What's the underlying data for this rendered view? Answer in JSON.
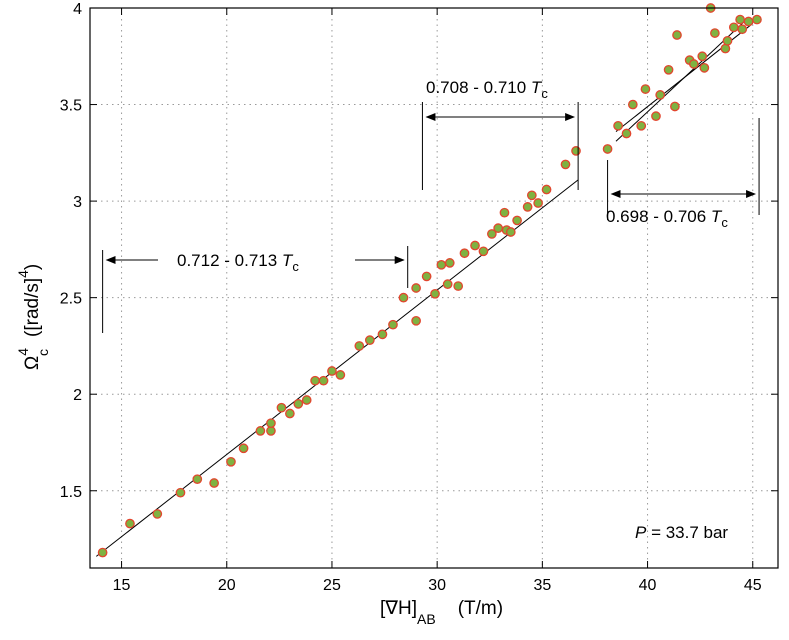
{
  "chart_data": {
    "type": "scatter",
    "xlabel": {
      "main": "[∇H]",
      "sub": "AB",
      "unit": "(T/m)"
    },
    "ylabel": {
      "main": "Ω",
      "sup": "4",
      "sub": "c",
      "unit": "([rad/s]",
      "unit_sup": "4",
      "unit_close": ")"
    },
    "xlim": [
      13.5,
      46.2
    ],
    "ylim": [
      1.1,
      4.0
    ],
    "xticks": [
      "15",
      "20",
      "25",
      "30",
      "35",
      "40",
      "45"
    ],
    "yticks": [
      "1.5",
      "2",
      "2.5",
      "3",
      "3.5",
      "4"
    ],
    "xtick_values": [
      15,
      20,
      25,
      30,
      35,
      40,
      45
    ],
    "ytick_values": [
      1.5,
      2,
      2.5,
      3,
      3.5,
      4
    ],
    "grid": true,
    "colors": {
      "marker_fill": "#7fb241",
      "marker_edge": "#e2462e",
      "line": "#000000",
      "grid": "#9a9a9a"
    },
    "note": {
      "var": "P",
      "text": " = 33.7 bar"
    },
    "groups": [
      {
        "label": "0.712 - 0.713 ",
        "tc": "T",
        "tc_sub": "c",
        "range": [
          14.1,
          28.6
        ]
      },
      {
        "label": "0.708 - 0.710 ",
        "tc": "T",
        "tc_sub": "c",
        "range": [
          29.3,
          36.7
        ]
      },
      {
        "label": "0.698 - 0.706 ",
        "tc": "T",
        "tc_sub": "c",
        "range": [
          38.1,
          45.3
        ]
      }
    ],
    "fit_lines": [
      {
        "from": [
          13.8,
          1.16
        ],
        "to": [
          36.7,
          3.11
        ]
      },
      {
        "from": [
          38.5,
          3.31
        ],
        "to": [
          44.8,
          3.95
        ]
      },
      {
        "from": [
          38.5,
          3.36
        ],
        "to": [
          45.0,
          3.92
        ]
      }
    ],
    "series": [
      {
        "name": "measurements",
        "points": [
          [
            14.1,
            1.18
          ],
          [
            15.4,
            1.33
          ],
          [
            16.7,
            1.38
          ],
          [
            17.8,
            1.49
          ],
          [
            18.6,
            1.56
          ],
          [
            19.4,
            1.54
          ],
          [
            20.2,
            1.65
          ],
          [
            20.8,
            1.72
          ],
          [
            21.6,
            1.81
          ],
          [
            22.1,
            1.81
          ],
          [
            22.1,
            1.85
          ],
          [
            22.6,
            1.93
          ],
          [
            23.0,
            1.9
          ],
          [
            23.4,
            1.95
          ],
          [
            23.8,
            1.97
          ],
          [
            24.2,
            2.07
          ],
          [
            24.6,
            2.07
          ],
          [
            25.0,
            2.12
          ],
          [
            25.4,
            2.1
          ],
          [
            26.3,
            2.25
          ],
          [
            26.8,
            2.28
          ],
          [
            27.4,
            2.31
          ],
          [
            27.9,
            2.36
          ],
          [
            28.4,
            2.5
          ],
          [
            29.0,
            2.38
          ],
          [
            29.0,
            2.55
          ],
          [
            29.5,
            2.61
          ],
          [
            29.9,
            2.52
          ],
          [
            30.2,
            2.67
          ],
          [
            30.5,
            2.57
          ],
          [
            30.6,
            2.68
          ],
          [
            31.0,
            2.56
          ],
          [
            31.3,
            2.73
          ],
          [
            31.8,
            2.77
          ],
          [
            32.2,
            2.74
          ],
          [
            32.6,
            2.83
          ],
          [
            32.9,
            2.86
          ],
          [
            33.2,
            2.94
          ],
          [
            33.3,
            2.85
          ],
          [
            33.5,
            2.84
          ],
          [
            33.8,
            2.9
          ],
          [
            34.3,
            2.97
          ],
          [
            34.5,
            3.03
          ],
          [
            34.8,
            2.99
          ],
          [
            35.2,
            3.06
          ],
          [
            36.1,
            3.19
          ],
          [
            36.6,
            3.26
          ],
          [
            38.1,
            3.27
          ],
          [
            38.6,
            3.39
          ],
          [
            39.0,
            3.35
          ],
          [
            39.3,
            3.5
          ],
          [
            39.7,
            3.39
          ],
          [
            39.9,
            3.58
          ],
          [
            40.4,
            3.44
          ],
          [
            40.6,
            3.55
          ],
          [
            41.0,
            3.68
          ],
          [
            41.3,
            3.49
          ],
          [
            41.4,
            3.86
          ],
          [
            42.0,
            3.73
          ],
          [
            42.2,
            3.71
          ],
          [
            42.6,
            3.75
          ],
          [
            42.7,
            3.69
          ],
          [
            43.0,
            4.0
          ],
          [
            43.2,
            3.87
          ],
          [
            43.7,
            3.79
          ],
          [
            43.8,
            3.83
          ],
          [
            44.1,
            3.9
          ],
          [
            44.5,
            3.89
          ],
          [
            44.8,
            3.93
          ],
          [
            45.2,
            3.94
          ],
          [
            44.4,
            3.94
          ]
        ]
      }
    ]
  }
}
